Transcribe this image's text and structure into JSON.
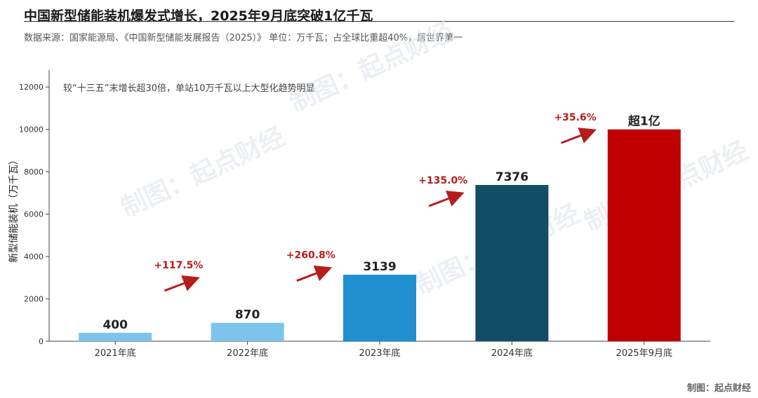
{
  "title": "中国新型储能装机爆发式增长，2025年9月底突破1亿千瓦",
  "subtitle": "数据来源：国家能源局、《中国新型储能发展报告（2025）》 单位：万千瓦；占全球比重超40%，居世界第一",
  "credit": "制图：起点财经",
  "watermark": "制图：起点财经",
  "chart_data": {
    "type": "bar",
    "categories": [
      "2021年底",
      "2022年底",
      "2023年底",
      "2024年底",
      "2025年9月底"
    ],
    "values": [
      400,
      870,
      3139,
      7376,
      10000
    ],
    "value_labels": [
      "400",
      "870",
      "3139",
      "7376",
      "超1亿"
    ],
    "bar_colors": [
      "#7dc4ec",
      "#7dc4ec",
      "#1f8fcf",
      "#124d66",
      "#c00000"
    ],
    "growth_labels": [
      "+117.5%",
      "+260.8%",
      "+135.0%",
      "+35.6%"
    ],
    "growth_color": "#b71c1c",
    "ylabel": "新型储能装机（万千瓦）",
    "ylim": [
      0,
      12800
    ],
    "yticks": [
      0,
      2000,
      4000,
      6000,
      8000,
      10000,
      12000
    ],
    "annotation": "较“十三五”末增长超30倍，单站10万千瓦以上大型化趋势明显",
    "grid": false
  }
}
